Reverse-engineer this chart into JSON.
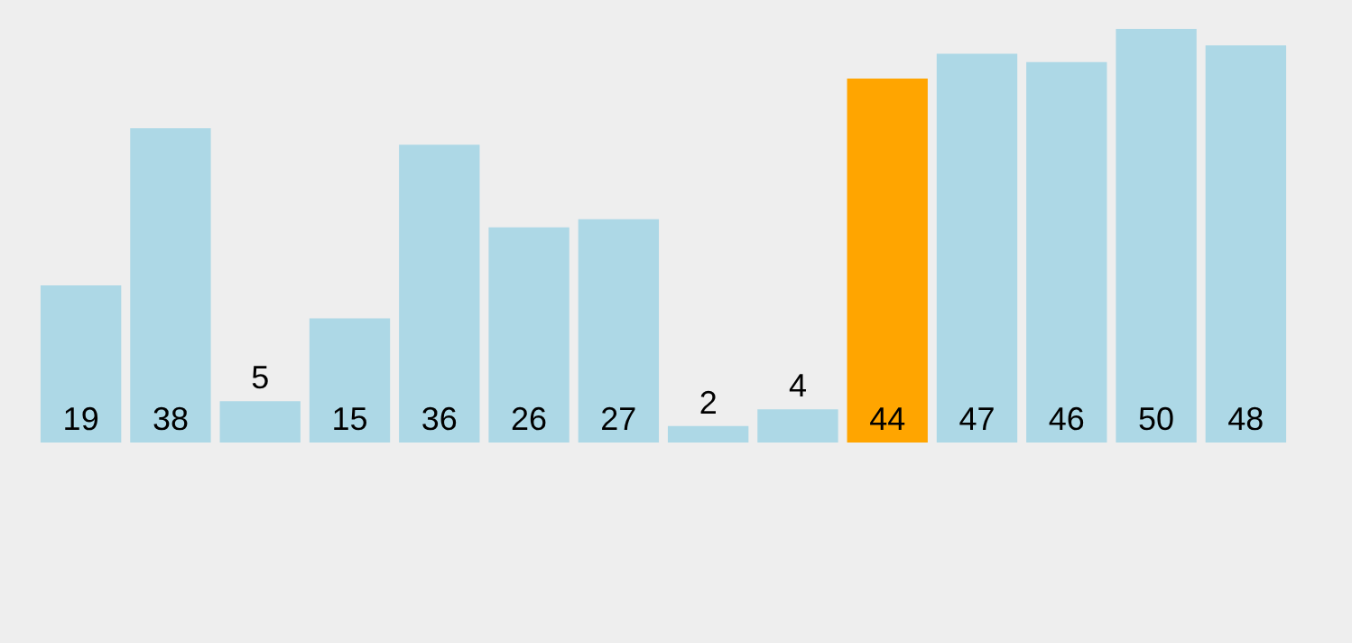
{
  "chart_data": {
    "type": "bar",
    "categories": [
      null,
      null,
      null,
      null,
      null,
      null,
      null,
      null,
      null,
      null,
      null,
      null,
      null,
      null
    ],
    "values": [
      19,
      38,
      5,
      15,
      36,
      26,
      27,
      2,
      4,
      44,
      47,
      46,
      50,
      48
    ],
    "colors": [
      "#add8e6",
      "#add8e6",
      "#add8e6",
      "#add8e6",
      "#add8e6",
      "#add8e6",
      "#add8e6",
      "#add8e6",
      "#add8e6",
      "#ffa500",
      "#add8e6",
      "#add8e6",
      "#add8e6",
      "#add8e6"
    ],
    "data_labels": true
  }
}
